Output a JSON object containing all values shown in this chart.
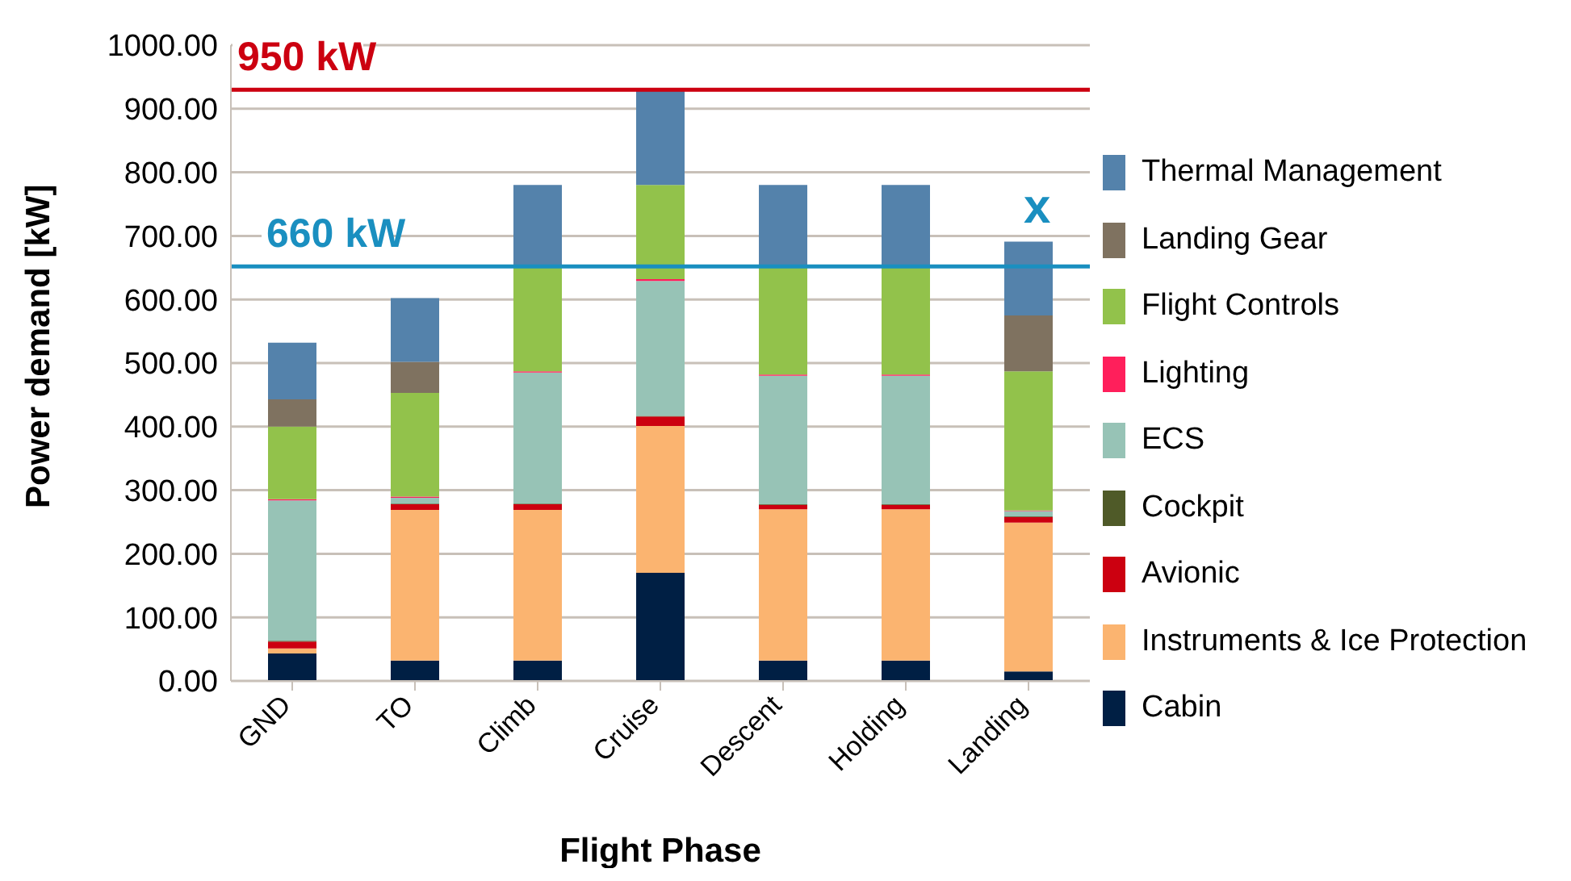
{
  "chart_data": {
    "type": "bar",
    "stacked": true,
    "xlabel": "Flight Phase",
    "ylabel": "Power demand [kW]",
    "categories": [
      "GND",
      "TO",
      "Climb",
      "Cruise",
      "Descent",
      "Holding",
      "Landing"
    ],
    "series": [
      {
        "name": "Cabin",
        "color": "#001f44",
        "values": [
          43,
          32,
          32,
          170,
          32,
          32,
          15
        ]
      },
      {
        "name": "Instruments & Ice Protection",
        "color": "#fbb470",
        "values": [
          8,
          237,
          237,
          231,
          238,
          238,
          234
        ]
      },
      {
        "name": "Avionic",
        "color": "#cc0010",
        "values": [
          11,
          9,
          9,
          15,
          7,
          7,
          9
        ]
      },
      {
        "name": "Cockpit",
        "color": "#4f5a28",
        "values": [
          1,
          1,
          1,
          1,
          1,
          1,
          1
        ]
      },
      {
        "name": "ECS",
        "color": "#97c3b6",
        "values": [
          221,
          9,
          206,
          212,
          202,
          202,
          8
        ]
      },
      {
        "name": "Lighting",
        "color": "#ff1f5b",
        "values": [
          2,
          2,
          2,
          3,
          2,
          2,
          1
        ]
      },
      {
        "name": "Flight Controls",
        "color": "#92c24b",
        "values": [
          114,
          163,
          163,
          148,
          168,
          168,
          219
        ]
      },
      {
        "name": "Landing Gear",
        "color": "#7f7260",
        "values": [
          43,
          49,
          0,
          0,
          0,
          0,
          88
        ]
      },
      {
        "name": "Thermal Management",
        "color": "#5482ab",
        "values": [
          89,
          100,
          130,
          150,
          130,
          130,
          116
        ]
      }
    ],
    "ylim": [
      0,
      1000
    ],
    "yticks": [
      {
        "value": 0,
        "label": "0.00"
      },
      {
        "value": 100,
        "label": "100.00"
      },
      {
        "value": 200,
        "label": "200.00"
      },
      {
        "value": 300,
        "label": "300.00"
      },
      {
        "value": 400,
        "label": "400.00"
      },
      {
        "value": 500,
        "label": "500.00"
      },
      {
        "value": 600,
        "label": "600.00"
      },
      {
        "value": 700,
        "label": "700.00"
      },
      {
        "value": 800,
        "label": "800.00"
      },
      {
        "value": 900,
        "label": "900.00"
      },
      {
        "value": 1000,
        "label": "1000.00"
      }
    ],
    "grid": "y",
    "legend": "right",
    "ref_lines": [
      {
        "axis": "y",
        "value": 930,
        "label": "950 kW",
        "color": "#cc0010"
      },
      {
        "axis": "y",
        "value": 652,
        "label": "660 kW",
        "color": "#1a8fc0"
      }
    ],
    "annotations": [
      "x"
    ]
  }
}
